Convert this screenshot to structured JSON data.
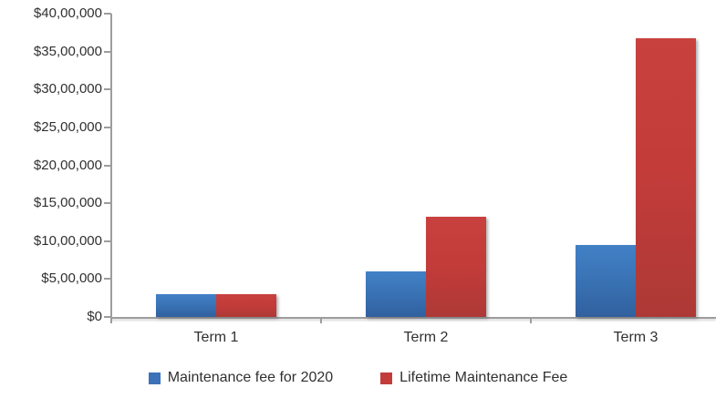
{
  "chart": {
    "y_axis": {
      "tick_labels": [
        "$40,00,000",
        "$35,00,000",
        "$30,00,000",
        "$25,00,000",
        "$20,00,000",
        "$15,00,000",
        "$10,00,000",
        "$5,00,000",
        "$0"
      ]
    },
    "x_axis": {
      "tick_labels": [
        "Term 1",
        "Term 2",
        "Term 3"
      ]
    },
    "legend": {
      "items": [
        {
          "label": "Maintenance fee for 2020",
          "color": "#3b72b8"
        },
        {
          "label": "Lifetime Maintenance Fee",
          "color": "#c23d3a"
        }
      ]
    },
    "colors": {
      "axis": "#9d9d9d",
      "text": "#303030",
      "series_blue": "#3b72b8",
      "series_red": "#c23d3a"
    }
  },
  "chart_data": {
    "type": "bar",
    "title": "",
    "xlabel": "",
    "ylabel": "",
    "categories": [
      "Term 1",
      "Term 2",
      "Term 3"
    ],
    "series": [
      {
        "name": "Maintenance fee for 2020",
        "color": "#3b72b8",
        "values": [
          300000,
          600000,
          950000
        ]
      },
      {
        "name": "Lifetime Maintenance Fee",
        "color": "#c23d3a",
        "values": [
          300000,
          1325000,
          3675000
        ]
      }
    ],
    "ylim": [
      0,
      4000000
    ],
    "y_tick_step": 500000,
    "y_tick_format": "indian-currency",
    "grid": false,
    "legend_position": "bottom"
  }
}
